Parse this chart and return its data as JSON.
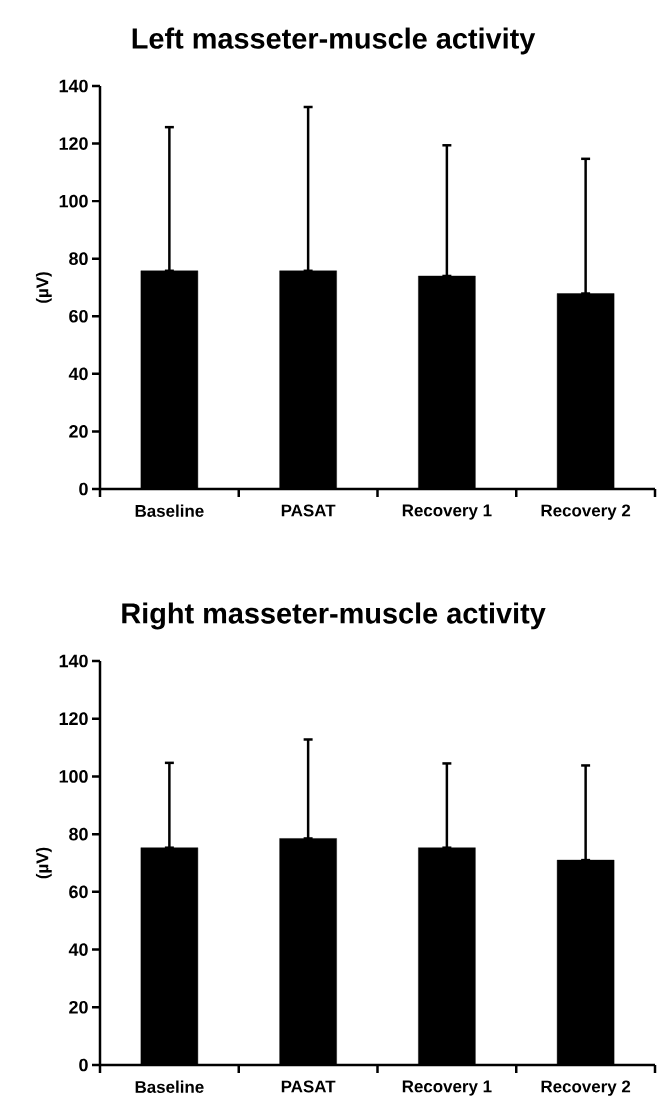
{
  "chart_data": [
    {
      "type": "bar",
      "title": "Left masseter-muscle activity",
      "ylabel": "(µV)",
      "categories": [
        "Baseline",
        "PASAT",
        "Recovery 1",
        "Recovery 2"
      ],
      "values": [
        75.8,
        75.8,
        74.0,
        67.9
      ],
      "errors": [
        [
          75.8,
          125.7
        ],
        [
          75.8,
          132.7
        ],
        [
          74.0,
          119.4
        ],
        [
          67.9,
          114.7
        ]
      ],
      "color": "#000000",
      "ylim": [
        0,
        140
      ],
      "yticks": [
        0,
        20,
        40,
        60,
        80,
        100,
        120,
        140
      ]
    },
    {
      "type": "bar",
      "title": "Right masseter-muscle activity",
      "ylabel": "(µV)",
      "categories": [
        "Baseline",
        "PASAT",
        "Recovery 1",
        "Recovery 2"
      ],
      "values": [
        75.3,
        78.5,
        75.3,
        71.0
      ],
      "errors": [
        [
          75.3,
          104.7
        ],
        [
          78.5,
          112.8
        ],
        [
          75.3,
          104.5
        ],
        [
          71.0,
          103.8
        ]
      ],
      "color": "#000000",
      "ylim": [
        0,
        140
      ],
      "yticks": [
        0,
        20,
        40,
        60,
        80,
        100,
        120,
        140
      ]
    }
  ]
}
